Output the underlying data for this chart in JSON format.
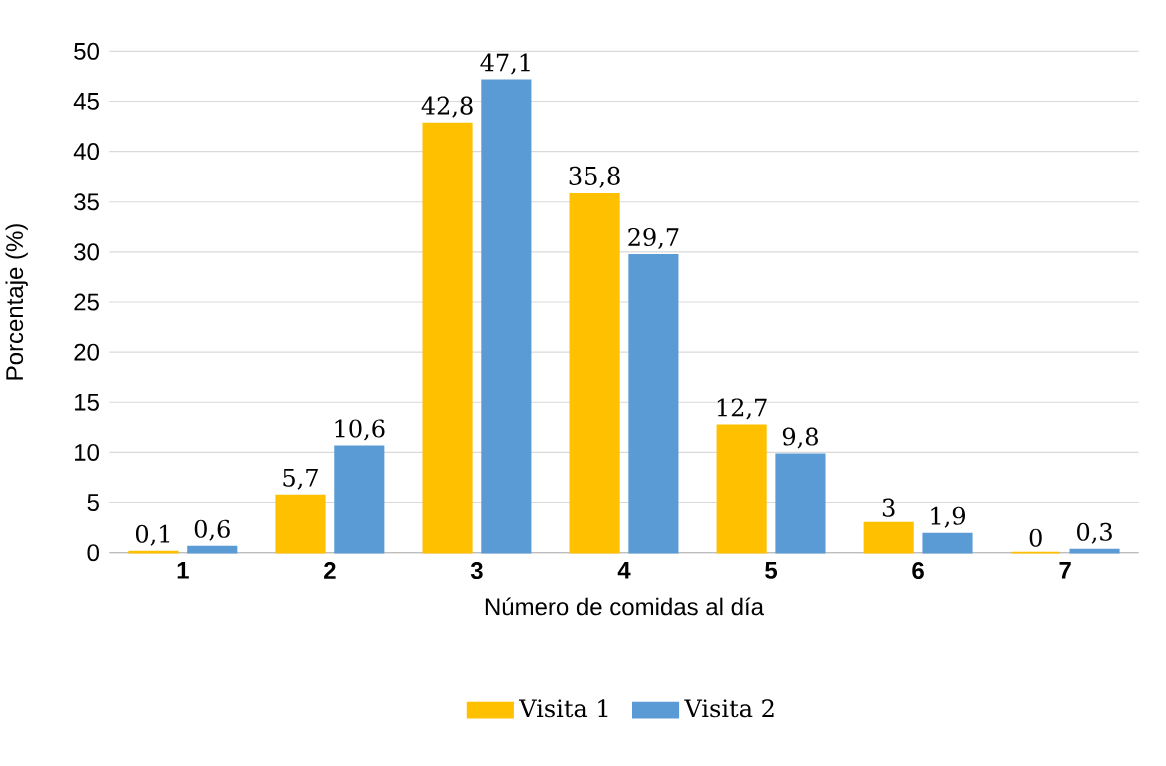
{
  "chart_data": {
    "type": "bar",
    "xlabel": "Número de comidas al día",
    "ylabel": "Porcentaje (%)",
    "categories": [
      "1",
      "2",
      "3",
      "4",
      "5",
      "6",
      "7"
    ],
    "series": [
      {
        "name": "Visita 1",
        "color": "#ffc000",
        "values": [
          0.1,
          5.7,
          42.8,
          35.8,
          12.7,
          3,
          0
        ],
        "value_labels": [
          "0,1",
          "5,7",
          "42,8",
          "35,8",
          "12,7",
          "3",
          "0"
        ]
      },
      {
        "name": "Visita 2",
        "color": "#5b9bd5",
        "values": [
          0.6,
          10.6,
          47.1,
          29.7,
          9.8,
          1.9,
          0.3
        ],
        "value_labels": [
          "0,6",
          "10,6",
          "47,1",
          "29,7",
          "9,8",
          "1,9",
          "0,3"
        ]
      }
    ],
    "ylim": [
      0,
      50
    ],
    "yticks": [
      0,
      5,
      10,
      15,
      20,
      25,
      30,
      35,
      40,
      45,
      50
    ],
    "grid": "y",
    "legend": "bottom"
  }
}
